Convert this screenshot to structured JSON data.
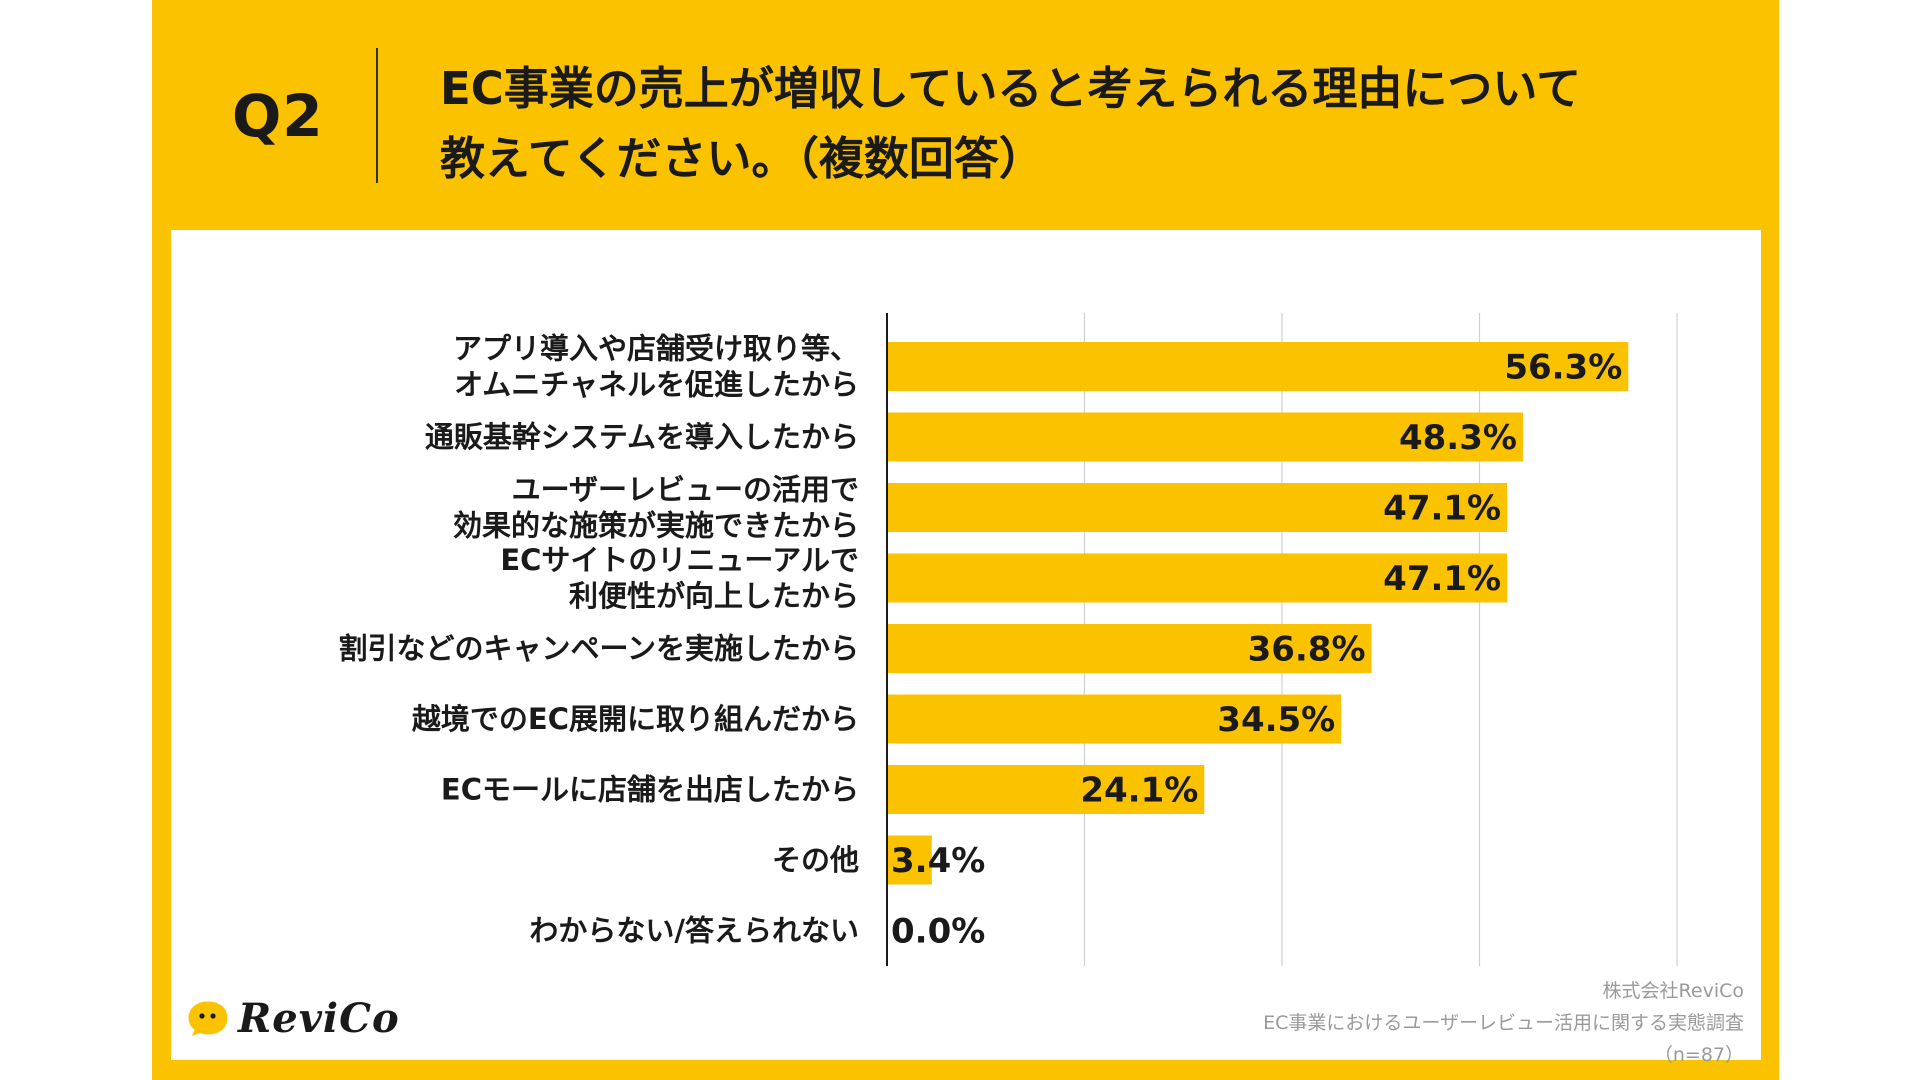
{
  "header": {
    "q_label": "Q2",
    "title_line1": "EC事業の売上が増収していると考えられる理由について",
    "title_line2": "教えてください。（複数回答）"
  },
  "colors": {
    "background": "#fbc200",
    "bar": "#fbc200",
    "panel": "#ffffff",
    "text": "#1a1a1a",
    "grid": "#d0d0d0",
    "credit": "#9a9a9a"
  },
  "chart_data": {
    "type": "bar",
    "orientation": "horizontal",
    "categories": [
      [
        "アプリ導入や店舗受け取り等、",
        "オムニチャネルを促進したから"
      ],
      [
        "通販基幹システムを導入したから"
      ],
      [
        "ユーザーレビューの活用で",
        "効果的な施策が実施できたから"
      ],
      [
        "ECサイトのリニューアルで",
        "利便性が向上したから"
      ],
      [
        "割引などのキャンペーンを実施したから"
      ],
      [
        "越境でのEC展開に取り組んだから"
      ],
      [
        "ECモールに店舗を出店したから"
      ],
      [
        "その他"
      ],
      [
        "わからない/答えられない"
      ]
    ],
    "values": [
      56.3,
      48.3,
      47.1,
      47.1,
      36.8,
      34.5,
      24.1,
      3.4,
      0.0
    ],
    "value_labels": [
      "56.3%",
      "48.3%",
      "47.1%",
      "47.1%",
      "36.8%",
      "34.5%",
      "24.1%",
      "3.4%",
      "0.0%"
    ],
    "xlim": [
      0,
      60
    ],
    "grid": true,
    "title": "",
    "xlabel": "",
    "ylabel": ""
  },
  "footer": {
    "logo_text": "ReviCo",
    "company": "株式会社ReviCo",
    "survey": "EC事業におけるユーザーレビュー活用に関する実態調査",
    "sample": "（n=87）"
  }
}
